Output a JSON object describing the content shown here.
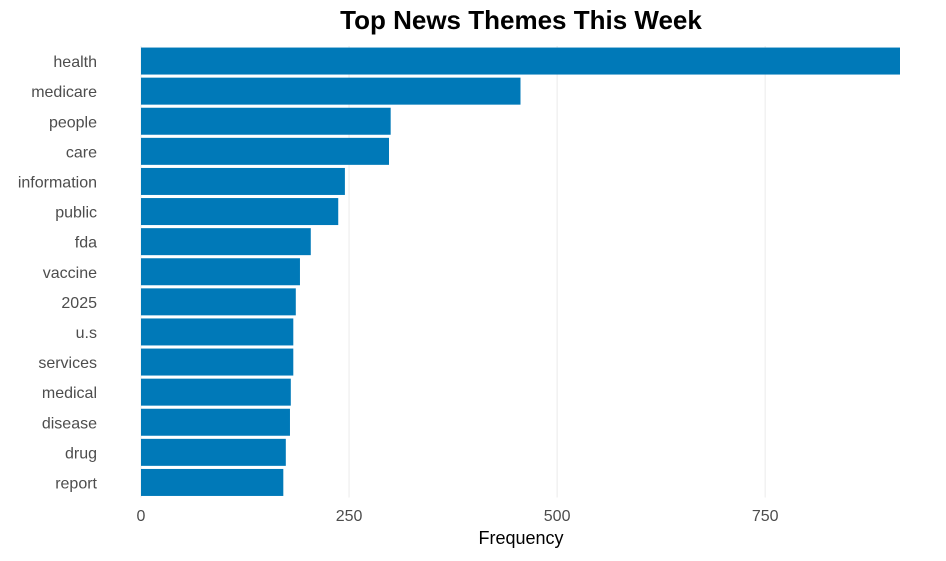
{
  "chart_data": {
    "type": "bar",
    "orientation": "horizontal",
    "title": "Top News Themes This Week",
    "xlabel": "Frequency",
    "ylabel": "",
    "categories": [
      "health",
      "medicare",
      "people",
      "care",
      "information",
      "public",
      "fda",
      "vaccine",
      "2025",
      "u.s",
      "services",
      "medical",
      "disease",
      "drug",
      "report"
    ],
    "values": [
      912,
      456,
      300,
      298,
      245,
      237,
      204,
      191,
      186,
      183,
      183,
      180,
      179,
      174,
      171
    ],
    "xlim": [
      0,
      912
    ],
    "xticks": [
      0,
      250,
      500,
      750
    ],
    "grid": "vertical",
    "legend": "none",
    "bar_color": "#0079b8"
  }
}
